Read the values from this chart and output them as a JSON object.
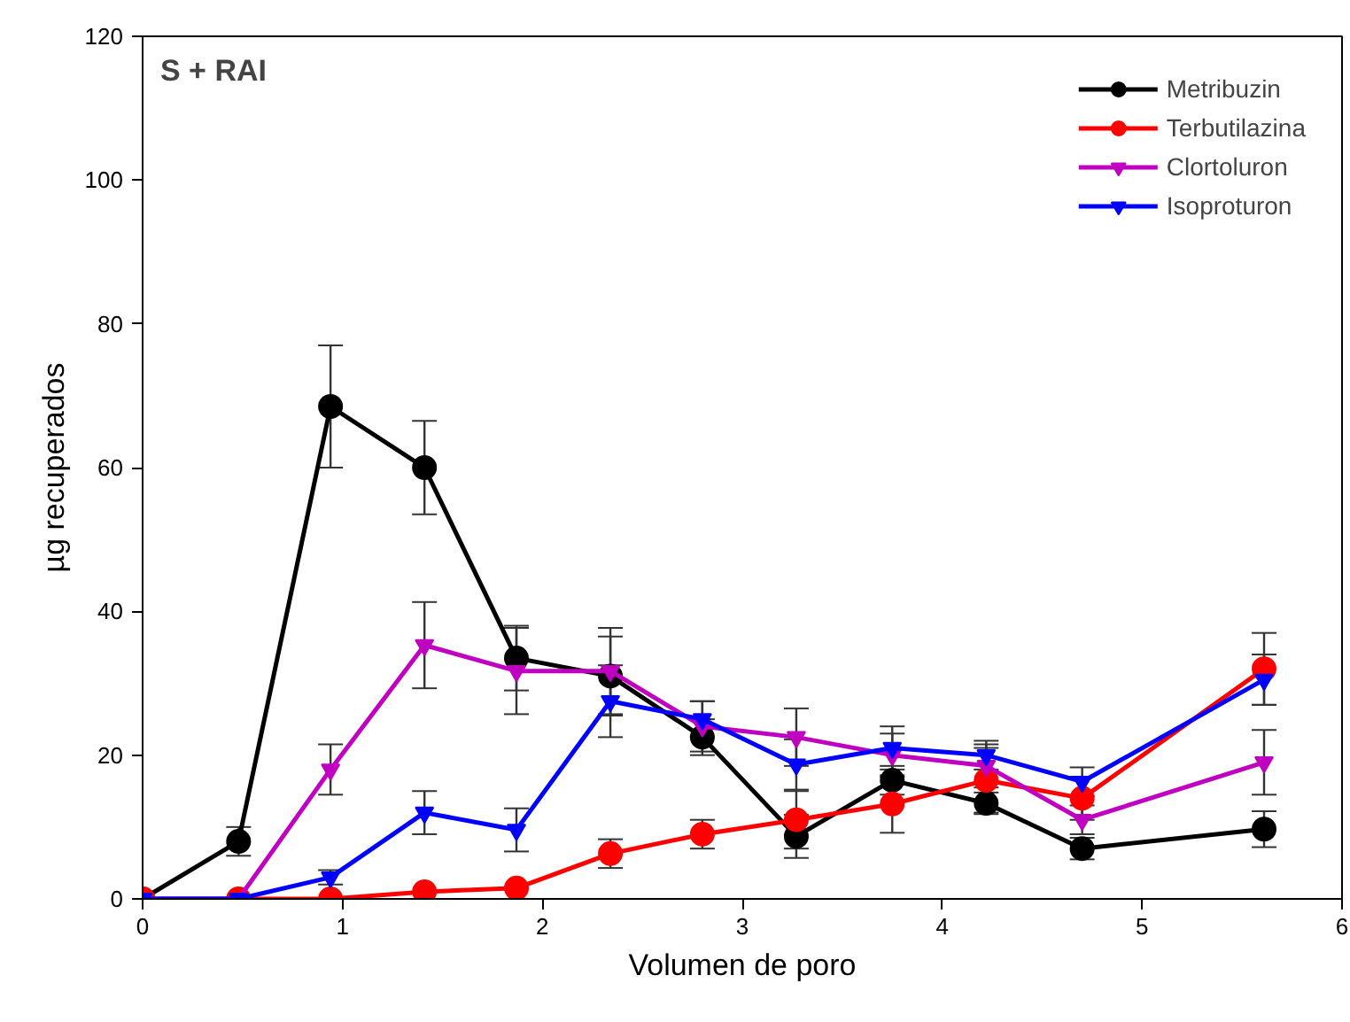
{
  "chart_data": {
    "type": "line",
    "title": "S + RAI",
    "xlabel": "Volumen de poro",
    "ylabel": "µg recuperados",
    "x": [
      0,
      0.48,
      0.94,
      1.41,
      1.87,
      2.34,
      2.8,
      3.27,
      3.75,
      4.22,
      4.7,
      5.61
    ],
    "series": [
      {
        "name": "Metribuzin",
        "color": "#000000",
        "marker": "circle",
        "values": [
          0,
          8,
          68.5,
          60,
          33.5,
          31,
          22.5,
          8.7,
          16.5,
          13.3,
          7,
          9.7
        ],
        "errors": [
          null,
          2,
          8.5,
          6.5,
          4.5,
          5.5,
          2.5,
          3,
          2,
          1.5,
          1.5,
          2.5
        ]
      },
      {
        "name": "Terbutilazina",
        "color": "#ff0000",
        "marker": "circle",
        "values": [
          0,
          0,
          0,
          1,
          1.5,
          6.3,
          9,
          11,
          13.2,
          16.5,
          14,
          32
        ],
        "errors": [
          null,
          null,
          null,
          null,
          null,
          2,
          2,
          4,
          4,
          4.5,
          3,
          5
        ]
      },
      {
        "name": "Clortoluron",
        "color": "#c000c0",
        "marker": "triangle",
        "values": [
          0,
          0,
          18,
          35.3,
          31.7,
          31.7,
          24,
          22.5,
          20,
          18.5,
          11,
          19
        ],
        "errors": [
          null,
          null,
          3.5,
          6,
          6,
          6,
          3.5,
          4,
          3,
          3,
          2,
          4.5
        ]
      },
      {
        "name": "Isoproturon",
        "color": "#0000ff",
        "marker": "triangle",
        "values": [
          0,
          0,
          3,
          12,
          9.6,
          27.5,
          25,
          18.7,
          21,
          20,
          16.3,
          30.5
        ],
        "errors": [
          null,
          null,
          1,
          3,
          3,
          5,
          2.5,
          3.5,
          3,
          2,
          2,
          3.5
        ]
      }
    ],
    "xlim": [
      0,
      6
    ],
    "xticks": [
      0,
      1,
      2,
      3,
      4,
      5,
      6
    ],
    "ylim": [
      0,
      120
    ],
    "yticks": [
      0,
      20,
      40,
      60,
      80,
      100,
      120
    ],
    "grid": false,
    "legend": "top right",
    "line_style": "solid"
  }
}
